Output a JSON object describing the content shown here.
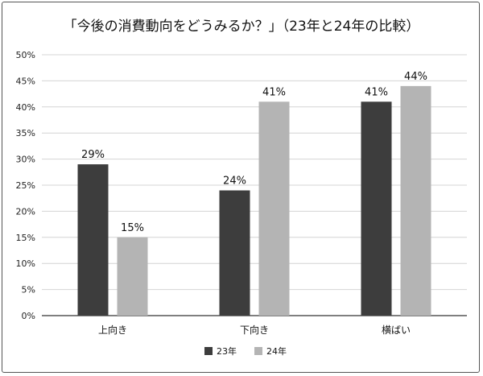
{
  "chart_data": {
    "type": "bar",
    "title": "「今後の消費動向をどうみるか？」（23年と24年の比較）",
    "categories": [
      "上向き",
      "下向き",
      "横ばい"
    ],
    "series": [
      {
        "name": "23年",
        "values": [
          29,
          24,
          41
        ],
        "labels": [
          "29%",
          "24%",
          "41%"
        ]
      },
      {
        "name": "24年",
        "values": [
          15,
          41,
          44
        ],
        "labels": [
          "15%",
          "41%",
          "44%"
        ]
      }
    ],
    "ylim": [
      0,
      50
    ],
    "yticks": [
      "0%",
      "5%",
      "10%",
      "15%",
      "20%",
      "25%",
      "30%",
      "35%",
      "40%",
      "45%",
      "50%"
    ],
    "grid": true,
    "legend_position": "bottom",
    "colors": {
      "s0": "#3d3d3d",
      "s1": "#b4b4b4",
      "grid": "#d4d4d4",
      "axis": "#333333"
    }
  }
}
